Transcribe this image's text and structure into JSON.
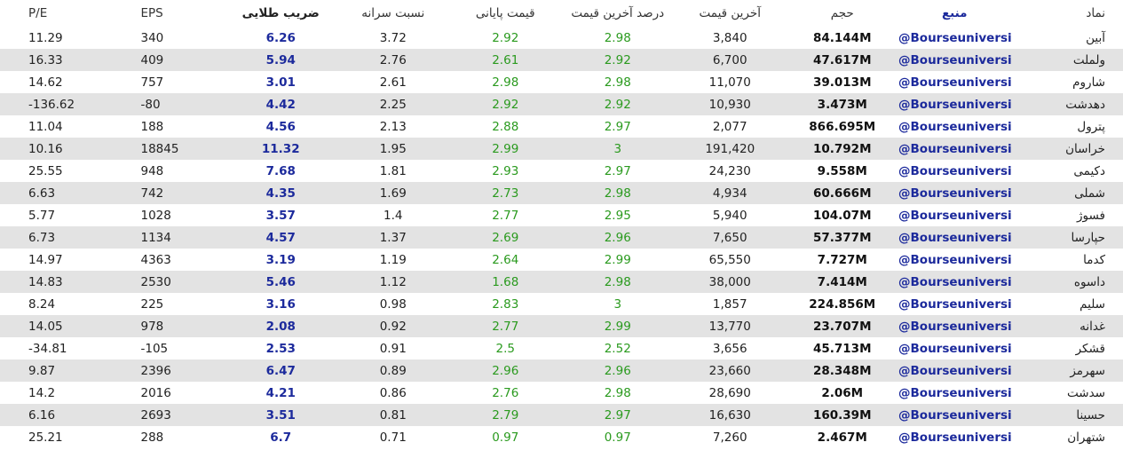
{
  "table": {
    "headers": [
      "نماد",
      "منبع",
      "حجم",
      "آخرین قیمت",
      "درصد آخرین قیمت",
      "قیمت پایانی",
      "نسبت سرانه",
      "ضریب طلایی",
      "EPS",
      "P/E"
    ],
    "rows": [
      [
        "آبین",
        "@Bourseuniversi",
        "84.144M",
        "3,840",
        "2.98",
        "2.92",
        "3.72",
        "6.26",
        "340",
        "11.29"
      ],
      [
        "ولملت",
        "@Bourseuniversi",
        "47.617M",
        "6,700",
        "2.92",
        "2.61",
        "2.76",
        "5.94",
        "409",
        "16.33"
      ],
      [
        "شاروم",
        "@Bourseuniversi",
        "39.013M",
        "11,070",
        "2.98",
        "2.98",
        "2.61",
        "3.01",
        "757",
        "14.62"
      ],
      [
        "دهدشت",
        "@Bourseuniversi",
        "3.473M",
        "10,930",
        "2.92",
        "2.92",
        "2.25",
        "4.42",
        "-80",
        "-136.62"
      ],
      [
        "پترول",
        "@Bourseuniversi",
        "866.695M",
        "2,077",
        "2.97",
        "2.88",
        "2.13",
        "4.56",
        "188",
        "11.04"
      ],
      [
        "خراسان",
        "@Bourseuniversi",
        "10.792M",
        "191,420",
        "3",
        "2.99",
        "1.95",
        "11.32",
        "18845",
        "10.16"
      ],
      [
        "دکیمی",
        "@Bourseuniversi",
        "9.558M",
        "24,230",
        "2.97",
        "2.93",
        "1.81",
        "7.68",
        "948",
        "25.55"
      ],
      [
        "شملی",
        "@Bourseuniversi",
        "60.666M",
        "4,934",
        "2.98",
        "2.73",
        "1.69",
        "4.35",
        "742",
        "6.63"
      ],
      [
        "فسوژ",
        "@Bourseuniversi",
        "104.07M",
        "5,940",
        "2.95",
        "2.77",
        "1.4",
        "3.57",
        "1028",
        "5.77"
      ],
      [
        "حپارسا",
        "@Bourseuniversi",
        "57.377M",
        "7,650",
        "2.96",
        "2.69",
        "1.37",
        "4.57",
        "1134",
        "6.73"
      ],
      [
        "کدما",
        "@Bourseuniversi",
        "7.727M",
        "65,550",
        "2.99",
        "2.64",
        "1.19",
        "3.19",
        "4363",
        "14.97"
      ],
      [
        "داسوه",
        "@Bourseuniversi",
        "7.414M",
        "38,000",
        "2.98",
        "1.68",
        "1.12",
        "5.46",
        "2530",
        "14.83"
      ],
      [
        "سلیم",
        "@Bourseuniversi",
        "224.856M",
        "1,857",
        "3",
        "2.83",
        "0.98",
        "3.16",
        "225",
        "8.24"
      ],
      [
        "غدانه",
        "@Bourseuniversi",
        "23.707M",
        "13,770",
        "2.99",
        "2.77",
        "0.92",
        "2.08",
        "978",
        "14.05"
      ],
      [
        "قشکر",
        "@Bourseuniversi",
        "45.713M",
        "3,656",
        "2.52",
        "2.5",
        "0.91",
        "2.53",
        "-105",
        "-34.81"
      ],
      [
        "سهرمز",
        "@Bourseuniversi",
        "28.348M",
        "23,660",
        "2.96",
        "2.96",
        "0.89",
        "6.47",
        "2396",
        "9.87"
      ],
      [
        "سدشت",
        "@Bourseuniversi",
        "2.06M",
        "28,690",
        "2.98",
        "2.76",
        "0.86",
        "4.21",
        "2016",
        "14.2"
      ],
      [
        "حسینا",
        "@Bourseuniversi",
        "160.39M",
        "16,630",
        "2.97",
        "2.79",
        "0.81",
        "3.51",
        "2693",
        "6.16"
      ],
      [
        "شتهران",
        "@Bourseuniversi",
        "2.467M",
        "7,260",
        "0.97",
        "0.97",
        "0.71",
        "6.7",
        "288",
        "25.21"
      ]
    ]
  }
}
